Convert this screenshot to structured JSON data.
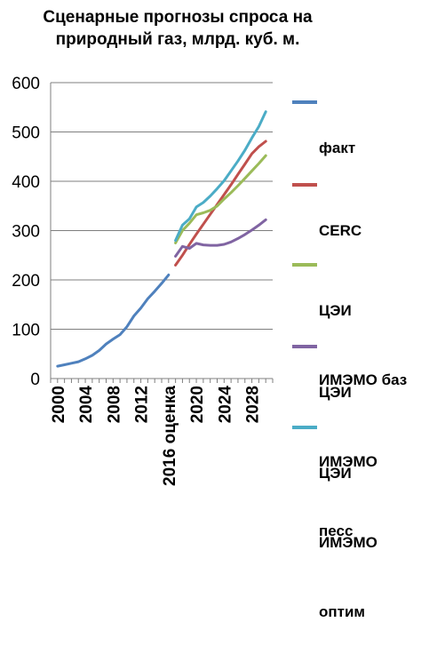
{
  "title_lines": [
    "Сценарные прогнозы спроса на",
    "природный газ, млрд. куб. м."
  ],
  "chart_data": {
    "type": "line",
    "title": "Сценарные прогнозы спроса на природный газ, млрд. куб. м.",
    "xlabel": "",
    "ylabel": "",
    "ylim": [
      0,
      600
    ],
    "y_ticks": [
      0,
      100,
      200,
      300,
      400,
      500,
      600
    ],
    "x_tick_labels": [
      "2000",
      "2004",
      "2008",
      "2012",
      "2016 оценка",
      "2020",
      "2024",
      "2028"
    ],
    "grid": {
      "horizontal": true,
      "vertical": false
    },
    "legend_position": "right",
    "series": [
      {
        "name": "факт",
        "color": "#4F81BD",
        "x": [
          2000,
          2001,
          2002,
          2003,
          2004,
          2005,
          2006,
          2007,
          2008,
          2009,
          2010,
          2011,
          2012,
          2013,
          2014,
          2015,
          2016
        ],
        "y": [
          25,
          28,
          31,
          34,
          40,
          47,
          57,
          70,
          80,
          89,
          105,
          127,
          143,
          162,
          177,
          193,
          210
        ]
      },
      {
        "name": "CERC",
        "color": "#C0504D",
        "x": [
          2017,
          2018,
          2019,
          2020,
          2021,
          2022,
          2023,
          2024,
          2025,
          2026,
          2027,
          2028,
          2029,
          2030
        ],
        "y": [
          230,
          250,
          272,
          293,
          313,
          333,
          353,
          373,
          393,
          414,
          435,
          456,
          470,
          481
        ]
      },
      {
        "name": "ЦЭИ ИМЭМО баз",
        "color": "#9BBB59",
        "x": [
          2017,
          2018,
          2019,
          2020,
          2021,
          2022,
          2023,
          2024,
          2025,
          2026,
          2027,
          2028,
          2029,
          2030
        ],
        "y": [
          275,
          300,
          315,
          332,
          336,
          341,
          350,
          364,
          377,
          391,
          406,
          421,
          436,
          452
        ]
      },
      {
        "name": "ЦЭИ ИМЭМО песс",
        "color": "#8064A2",
        "x": [
          2017,
          2018,
          2019,
          2020,
          2021,
          2022,
          2023,
          2024,
          2025,
          2026,
          2027,
          2028,
          2029,
          2030
        ],
        "y": [
          248,
          268,
          264,
          274,
          271,
          270,
          270,
          272,
          277,
          284,
          292,
          301,
          311,
          322
        ]
      },
      {
        "name": "ЦЭИ ИМЭМО оптим",
        "color": "#4BACC6",
        "x": [
          2017,
          2018,
          2019,
          2020,
          2021,
          2022,
          2023,
          2024,
          2025,
          2026,
          2027,
          2028,
          2029,
          2030
        ],
        "y": [
          280,
          311,
          324,
          348,
          357,
          370,
          385,
          401,
          421,
          441,
          463,
          488,
          511,
          541
        ]
      }
    ]
  },
  "legend": [
    {
      "lines": [
        "факт"
      ],
      "color": "#4F81BD"
    },
    {
      "lines": [
        "CERC"
      ],
      "color": "#C0504D"
    },
    {
      "lines": [
        "ЦЭИ",
        "ИМЭМО баз"
      ],
      "color": "#9BBB59"
    },
    {
      "lines": [
        "ЦЭИ",
        "ИМЭМО",
        "песс"
      ],
      "color": "#8064A2"
    },
    {
      "lines": [
        "ЦЭИ",
        "ИМЭМО",
        "оптим"
      ],
      "color": "#4BACC6"
    }
  ]
}
